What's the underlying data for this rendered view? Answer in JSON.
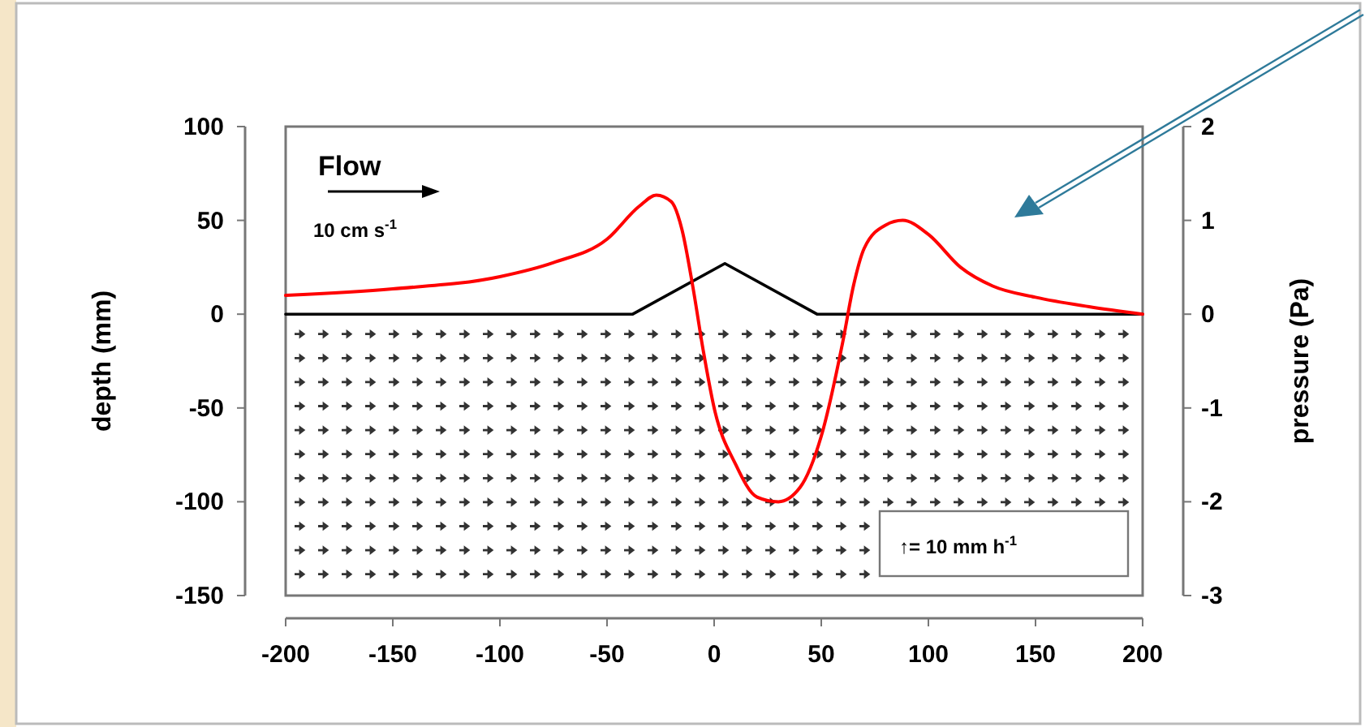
{
  "chart_data": {
    "type": "line",
    "ylabel": "depth (mm)",
    "y2label": "pressure (Pa)",
    "xlim": [
      -200,
      200
    ],
    "xticks": [
      -200,
      -150,
      -100,
      -50,
      0,
      50,
      100,
      150,
      200
    ],
    "ylim": [
      -150,
      100
    ],
    "yticks": [
      -150,
      -100,
      -50,
      0,
      50,
      100
    ],
    "y2lim": [
      -3,
      2
    ],
    "y2ticks": [
      -3,
      -2,
      -1,
      0,
      1,
      2
    ],
    "grid": false,
    "marker": "none",
    "line_style": "solid",
    "series": [
      {
        "color": "#000000",
        "axis": "y",
        "x": [
          -200,
          -38,
          5,
          48,
          200
        ],
        "values": [
          0,
          0,
          27,
          0,
          0
        ]
      },
      {
        "color": "#ff0000",
        "axis": "y2",
        "x": [
          -200,
          -150,
          -100,
          -75,
          -50,
          -35,
          -27,
          -20,
          -15,
          -10,
          -5,
          0,
          10,
          20,
          30,
          40,
          50,
          60,
          65,
          70,
          80,
          88,
          100,
          115,
          130,
          150,
          175,
          200
        ],
        "values": [
          0.2,
          0.27,
          0.4,
          0.55,
          0.8,
          1.15,
          1.27,
          1.2,
          0.9,
          0.3,
          -0.4,
          -1.0,
          -1.6,
          -1.95,
          -2.0,
          -1.85,
          -1.3,
          -0.3,
          0.3,
          0.7,
          0.95,
          1.0,
          0.85,
          0.5,
          0.3,
          0.18,
          0.08,
          0
        ]
      }
    ],
    "annotations": [
      "Flow",
      "10 cm s$^{-1}$",
      "↑= 10 mm h$^{-1}$"
    ]
  }
}
